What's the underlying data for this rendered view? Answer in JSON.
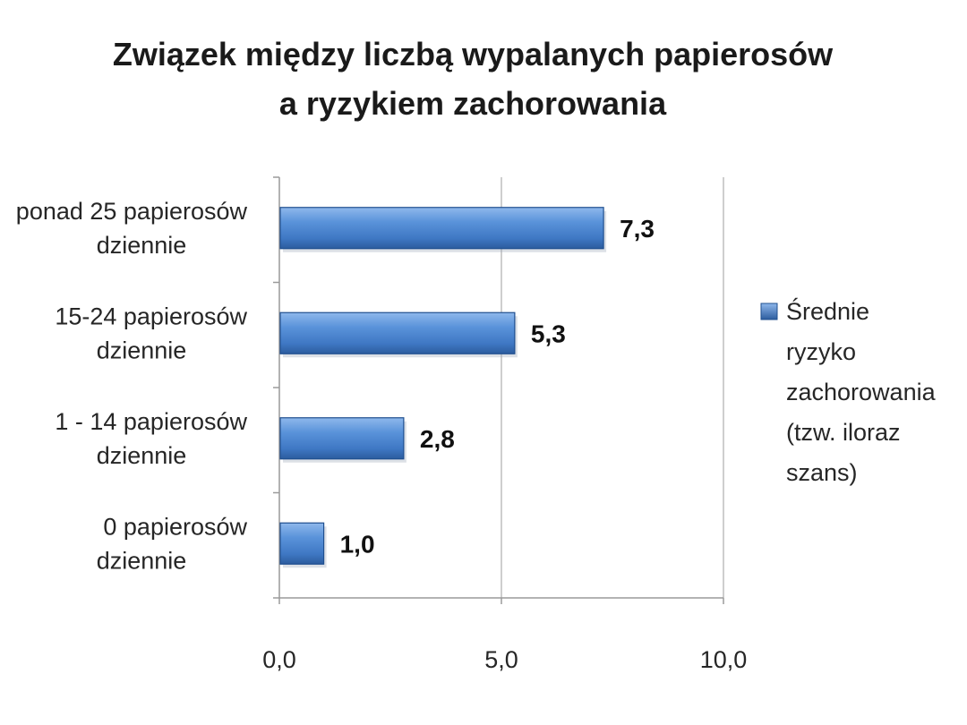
{
  "chart_data": {
    "type": "bar",
    "orientation": "horizontal",
    "title_lines": [
      "Związek między liczbą wypalanych papierosów",
      "a ryzykiem zachorowania"
    ],
    "categories": [
      [
        "ponad 25 papierosów",
        "dziennie"
      ],
      [
        "15-24 papierosów",
        "dziennie"
      ],
      [
        "1 - 14 papierosów",
        "dziennie"
      ],
      [
        "0 papierosów",
        "dziennie"
      ]
    ],
    "series": [
      {
        "name_lines": [
          "Średnie",
          "ryzyko",
          "zachorowania",
          "(tzw. iloraz",
          "szans)"
        ],
        "values": [
          7.3,
          5.3,
          2.8,
          1.0
        ],
        "value_labels": [
          "7,3",
          "5,3",
          "2,8",
          "1,0"
        ],
        "color": "#4a86d0"
      }
    ],
    "xlim": [
      0,
      10
    ],
    "x_ticks": [
      0,
      5,
      10
    ],
    "x_tick_labels": [
      "0,0",
      "5,0",
      "10,0"
    ],
    "grid": true,
    "legend_position": "right"
  }
}
